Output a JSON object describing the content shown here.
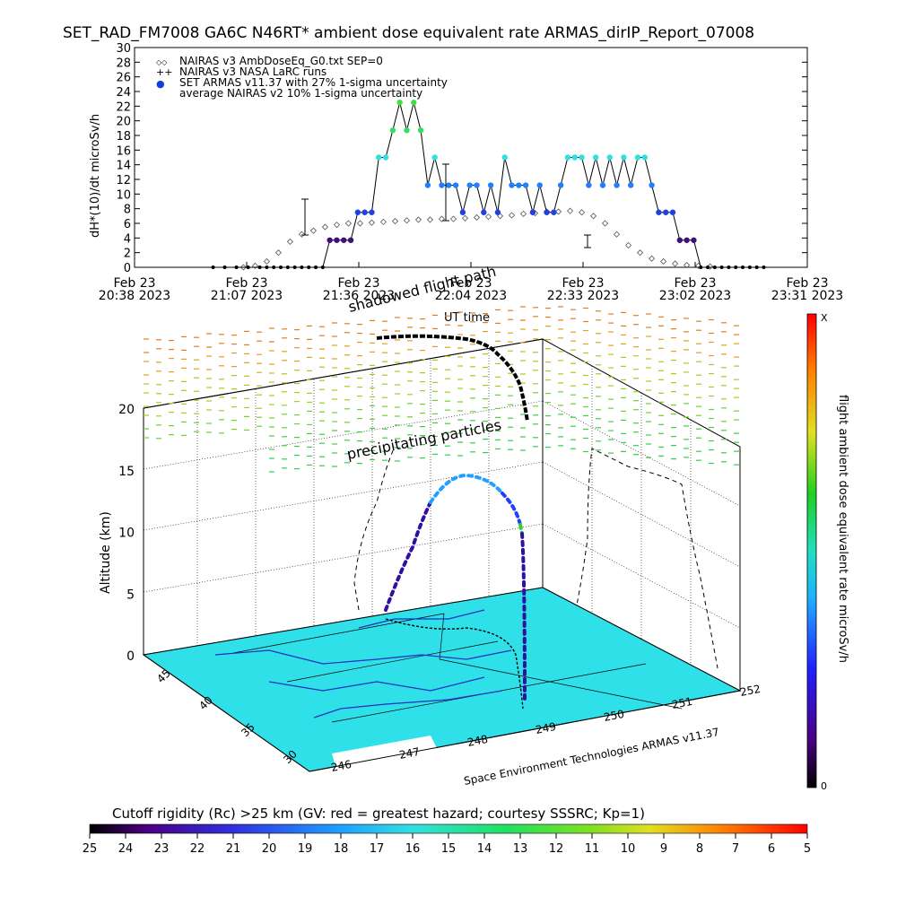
{
  "title": "SET_RAD_FM7008  GA6C N46RT* ambient dose equivalent rate ARMAS_dirIP_Report_07008",
  "chart_data": [
    {
      "type": "scatter",
      "ylabel": "dH*(10)/dt microSv/h",
      "xlabel": "UT time",
      "ylim": [
        0,
        30
      ],
      "yticks": [
        0,
        2,
        4,
        6,
        8,
        10,
        12,
        14,
        16,
        18,
        20,
        22,
        24,
        26,
        28,
        30
      ],
      "xticks": [
        {
          "date": "Feb 23",
          "time": "20:38 2023"
        },
        {
          "date": "Feb 23",
          "time": "21:07 2023"
        },
        {
          "date": "Feb 23",
          "time": "21:36 2023"
        },
        {
          "date": "Feb 23",
          "time": "22:04 2023"
        },
        {
          "date": "Feb 23",
          "time": "22:33 2023"
        },
        {
          "date": "Feb 23",
          "time": "23:02 2023"
        },
        {
          "date": "Feb 23",
          "time": "23:31 2023"
        }
      ],
      "legend": [
        {
          "symbol": "◇◇",
          "text": "NAIRAS v3 AmbDoseEq_G0.txt SEP=0"
        },
        {
          "symbol": "++",
          "text": "NAIRAS v3 NASA LaRC runs"
        },
        {
          "symbol": "●",
          "text": "SET ARMAS v11.37 with 27% 1-sigma uncertainty"
        },
        {
          "symbol": "",
          "text": "average NAIRAS v2 10% 1-sigma uncertainty"
        }
      ],
      "legend_placement": "top-left",
      "armas_series": {
        "x": [
          20.97,
          21.02,
          21.07,
          21.12,
          21.17,
          21.2,
          21.23,
          21.26,
          21.29,
          21.32,
          21.35,
          21.38,
          21.41,
          21.44,
          21.47,
          21.5,
          21.53,
          21.56,
          21.59,
          21.62,
          21.65,
          21.68,
          21.71,
          21.74,
          21.77,
          21.8,
          21.83,
          21.86,
          21.89,
          21.92,
          21.95,
          21.98,
          22.01,
          22.04,
          22.07,
          22.1,
          22.13,
          22.16,
          22.19,
          22.22,
          22.25,
          22.28,
          22.31,
          22.34,
          22.37,
          22.4,
          22.43,
          22.46,
          22.49,
          22.52,
          22.55,
          22.58,
          22.61,
          22.64,
          22.67,
          22.7,
          22.73,
          22.76,
          22.79,
          22.82,
          22.85,
          22.88,
          22.91,
          22.94,
          22.97,
          23.0,
          23.03,
          23.06,
          23.09,
          23.12,
          23.15,
          23.18,
          23.21,
          23.24,
          23.27,
          23.3,
          23.33
        ],
        "y": [
          0,
          0,
          0,
          0,
          0,
          0,
          0,
          0,
          0,
          0,
          0,
          0,
          0,
          0,
          3.7,
          3.7,
          3.7,
          3.7,
          7.5,
          7.5,
          7.5,
          15,
          15,
          18.7,
          22.5,
          18.7,
          22.5,
          18.7,
          11.2,
          15,
          11.2,
          11.2,
          11.2,
          7.5,
          11.2,
          11.2,
          7.5,
          11.2,
          7.5,
          15,
          11.2,
          11.2,
          11.2,
          7.5,
          11.2,
          7.5,
          7.5,
          11.2,
          15,
          15,
          15,
          11.2,
          15,
          11.2,
          15,
          11.2,
          15,
          11.2,
          15,
          15,
          11.2,
          7.5,
          7.5,
          7.5,
          3.7,
          3.7,
          3.7,
          0,
          0,
          0,
          0,
          0,
          0,
          0,
          0,
          0,
          0
        ]
      },
      "nairas_series": {
        "x": [
          21.1,
          21.15,
          21.2,
          21.25,
          21.3,
          21.35,
          21.4,
          21.45,
          21.5,
          21.55,
          21.6,
          21.65,
          21.7,
          21.75,
          21.8,
          21.85,
          21.9,
          21.95,
          22.0,
          22.05,
          22.1,
          22.15,
          22.2,
          22.25,
          22.3,
          22.35,
          22.4,
          22.45,
          22.5,
          22.55,
          22.6,
          22.65,
          22.7,
          22.75,
          22.8,
          22.85,
          22.9,
          22.95,
          23.0,
          23.05,
          23.1
        ],
        "y": [
          0,
          0.2,
          0.8,
          2,
          3.5,
          4.5,
          5,
          5.5,
          5.8,
          6,
          6,
          6.1,
          6.2,
          6.3,
          6.4,
          6.5,
          6.5,
          6.6,
          6.6,
          6.7,
          6.8,
          6.9,
          7,
          7.1,
          7.3,
          7.4,
          7.6,
          7.6,
          7.7,
          7.5,
          7,
          6,
          4.5,
          3,
          2,
          1.2,
          0.8,
          0.5,
          0.3,
          0.2,
          0.1
        ]
      }
    },
    {
      "type": "3d-flight-path",
      "zlabel": "Altitude (km)",
      "zticks": [
        0,
        5,
        10,
        15,
        20
      ],
      "lat_ticks": [
        30,
        35,
        40,
        45
      ],
      "lon_ticks": [
        246,
        247,
        248,
        249,
        250,
        251,
        252
      ],
      "annotations": [
        "shadowed flight path",
        "precipitating particles"
      ],
      "credit": "Space Environment Technologies ARMAS v11.37",
      "colorbar_label": "flight ambient dose equivalent rate microSv/h",
      "colorbar_top": "X",
      "colorbar_bottom": "0"
    },
    {
      "type": "colorbar",
      "label": "Cutoff rigidity (Rc) >25 km (GV: red = greatest hazard; courtesy SSSRC; Kp=1)",
      "ticks": [
        25,
        24,
        23,
        22,
        21,
        20,
        19,
        18,
        17,
        16,
        15,
        14,
        13,
        12,
        11,
        10,
        9,
        8,
        7,
        6,
        5
      ]
    }
  ]
}
